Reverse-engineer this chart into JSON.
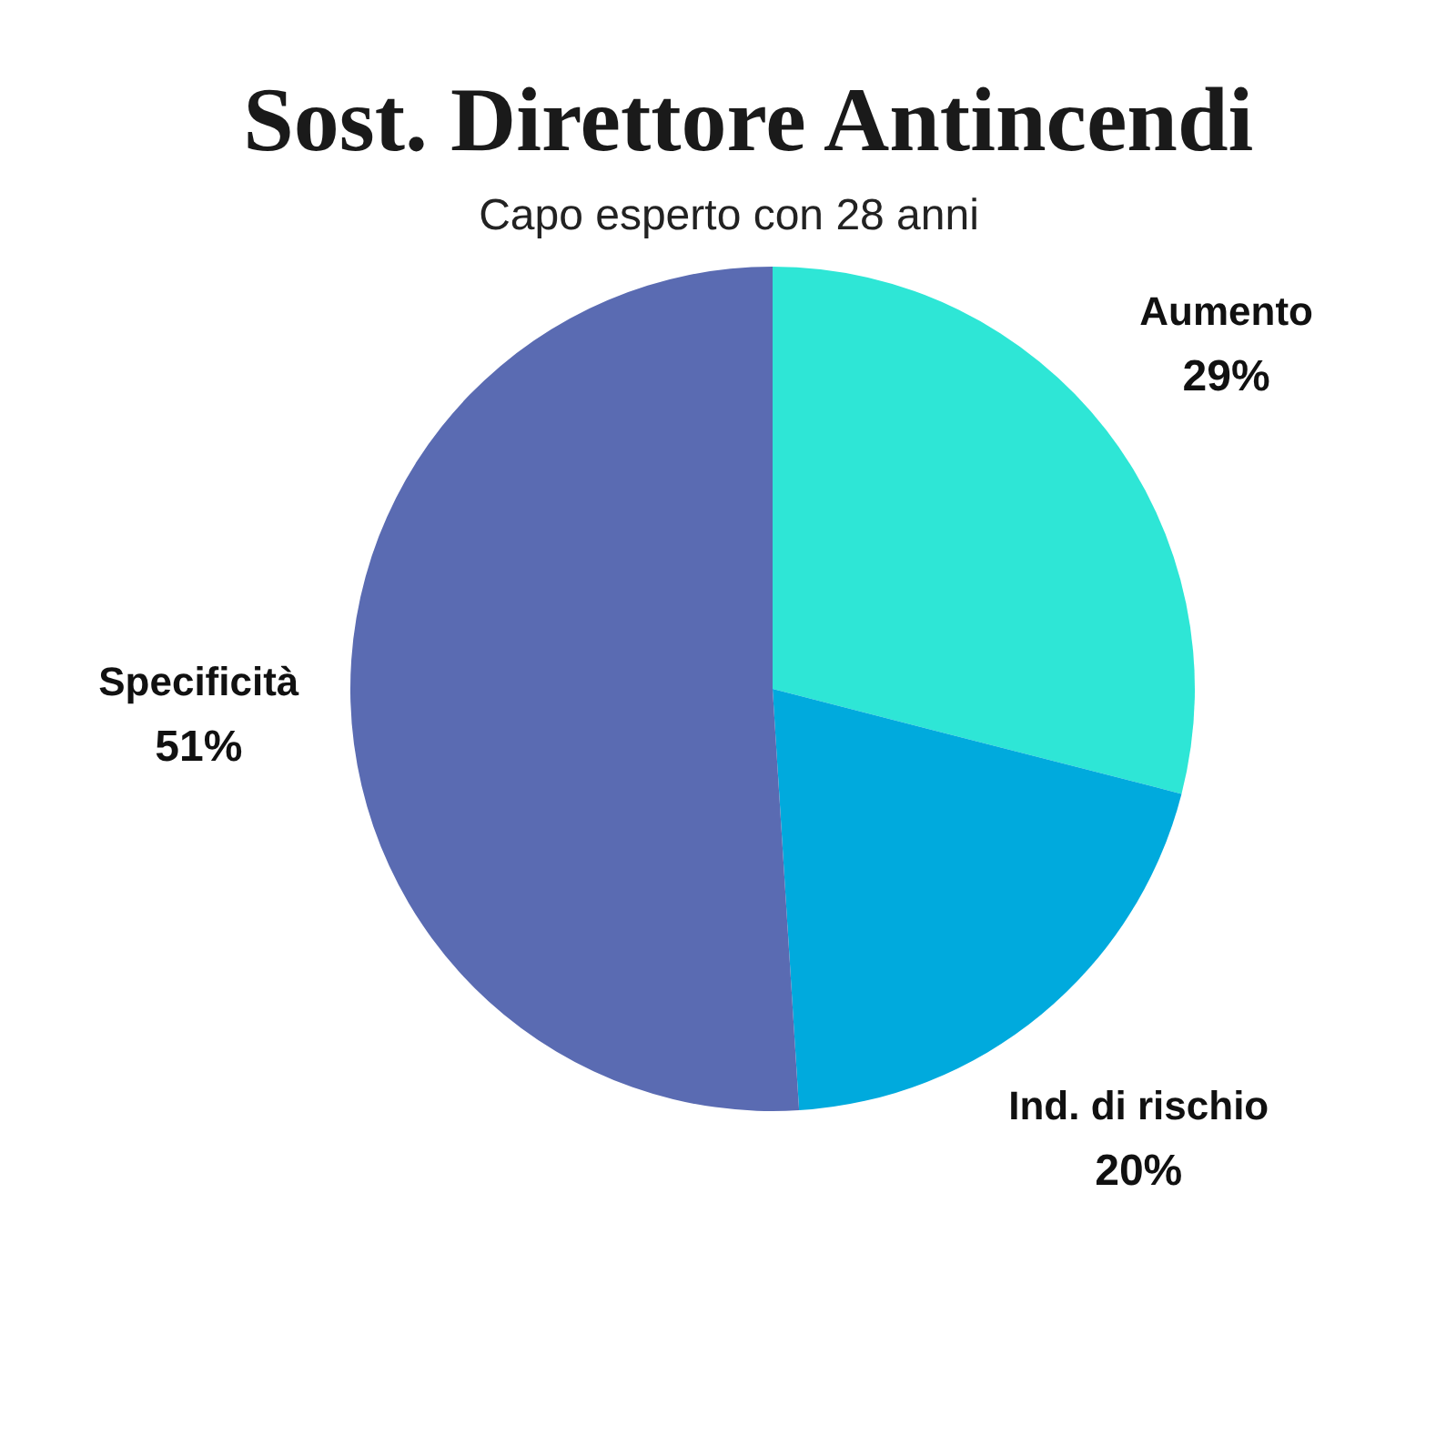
{
  "chart_data": {
    "type": "pie",
    "title": "Sost. Direttore Antincendi",
    "subtitle": "Capo esperto con 28 anni",
    "categories": [
      "Aumento",
      "Ind. di rischio",
      "Specificità"
    ],
    "values": [
      29,
      20,
      51
    ],
    "colors": [
      "#2ee6d6",
      "#00aadd",
      "#5a6bb2"
    ],
    "value_labels": [
      "29%",
      "20%",
      "51%"
    ]
  }
}
